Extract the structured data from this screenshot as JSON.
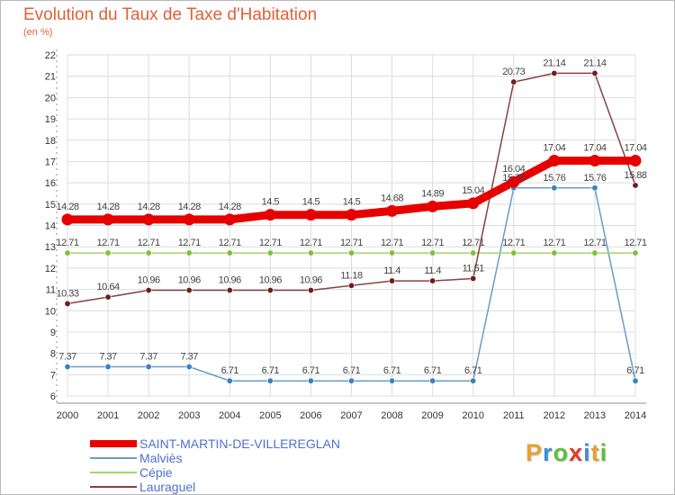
{
  "title": "Evolution du Taux de Taxe d'Habitation",
  "subtitle": "(en %)",
  "brand": {
    "text": "Proxiti",
    "letter_colors": [
      "#e8a030",
      "#3a8fd0",
      "#5cbf3a",
      "#e23b2e",
      "#3a8fd0",
      "#e8a030",
      "#5cbf3a"
    ]
  },
  "colors": {
    "grid": "#dcdcdc",
    "axis": "#8e8e8e",
    "tick_label": "#333333",
    "data_label": "#444444"
  },
  "chart_data": {
    "type": "line",
    "title": "Evolution du Taux de Taxe d'Habitation",
    "subtitle": "(en %)",
    "xlabel": "",
    "ylabel": "",
    "ylim": [
      6,
      22
    ],
    "yticks": [
      6,
      7,
      8,
      9,
      10,
      11,
      12,
      13,
      14,
      15,
      16,
      17,
      18,
      19,
      20,
      21,
      22
    ],
    "grid": true,
    "legend_position": "bottom-left",
    "x": [
      "2000",
      "2001",
      "2002",
      "2003",
      "2004",
      "2005",
      "2006",
      "2007",
      "2008",
      "2009",
      "2010",
      "2011",
      "2012",
      "2013",
      "2014"
    ],
    "series": [
      {
        "name": "SAINT-MARTIN-DE-VILLEREGLAN",
        "color": "#e60000",
        "marker_color": "#e60000",
        "emphasis": true,
        "values": [
          14.28,
          14.28,
          14.28,
          14.28,
          14.28,
          14.5,
          14.5,
          14.5,
          14.68,
          14.89,
          15.04,
          16.04,
          17.04,
          17.04,
          17.04
        ],
        "labels": [
          "14.28",
          "14.28",
          "14.28",
          "14.28",
          "14.28",
          "14.5",
          "14.5",
          "14.5",
          "14.68",
          "14.89",
          "15.04",
          "16.04",
          "17.04",
          "17.04",
          "17.04"
        ]
      },
      {
        "name": "Malviès",
        "color": "#6a9cc9",
        "marker_color": "#3c80c0",
        "emphasis": false,
        "values": [
          7.37,
          7.37,
          7.37,
          7.37,
          6.71,
          6.71,
          6.71,
          6.71,
          6.71,
          6.71,
          6.71,
          15.76,
          15.76,
          15.76,
          6.71
        ],
        "labels": [
          "7.37",
          "7.37",
          "7.37",
          "7.37",
          "6.71",
          "6.71",
          "6.71",
          "6.71",
          "6.71",
          "6.71",
          "6.71",
          "15.76",
          "15.76",
          "15.76",
          "6.71"
        ]
      },
      {
        "name": "Cépie",
        "color": "#9ed86a",
        "marker_color": "#7cc040",
        "emphasis": false,
        "values": [
          12.71,
          12.71,
          12.71,
          12.71,
          12.71,
          12.71,
          12.71,
          12.71,
          12.71,
          12.71,
          12.71,
          12.71,
          12.71,
          12.71,
          12.71
        ],
        "labels": [
          "12.71",
          "12.71",
          "12.71",
          "12.71",
          "12.71",
          "12.71",
          "12.71",
          "12.71",
          "12.71",
          "12.71",
          "12.71",
          "12.71",
          "12.71",
          "12.71",
          "12.71"
        ]
      },
      {
        "name": "Lauraguel",
        "color": "#8a4040",
        "marker_color": "#6a1e1e",
        "emphasis": false,
        "values": [
          10.33,
          10.64,
          10.96,
          10.96,
          10.96,
          10.96,
          10.96,
          11.18,
          11.4,
          11.4,
          11.51,
          20.73,
          21.14,
          21.14,
          15.88
        ],
        "labels": [
          "10.33",
          "10.64",
          "10.96",
          "10.96",
          "10.96",
          "10.96",
          "10.96",
          "11.18",
          "11.4",
          "11.4",
          "11.51",
          "20.73",
          "21.14",
          "21.14",
          "15.88"
        ]
      }
    ]
  }
}
